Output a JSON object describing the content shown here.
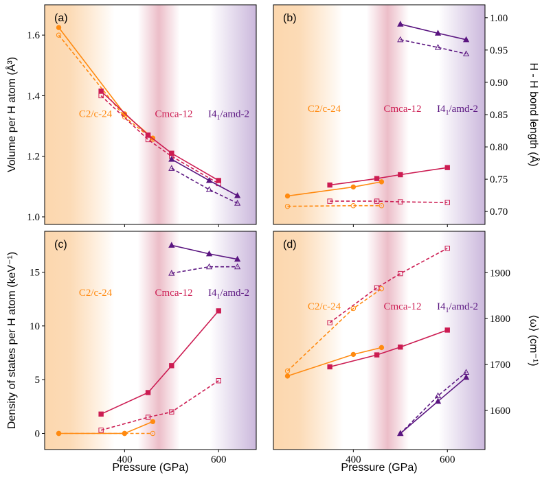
{
  "figure": {
    "x_axis_label": "Pressure (GPa)",
    "phase_labels": [
      {
        "text": "C2/c-24",
        "color": "#ff8a10"
      },
      {
        "text": "Cmca-12",
        "color": "#cc1c52"
      },
      {
        "text": "I4₁/amd-2",
        "color": "#5a1580"
      }
    ],
    "colors": {
      "C2c24": "#ff8a10",
      "Cmca12": "#cc1c52",
      "I41amd2": "#5a1580",
      "bg_orange": "#fcd7ae",
      "bg_pink": "#ecbdc8",
      "bg_purple": "#cbb8dc"
    }
  },
  "chart_data": [
    {
      "panel": "(a)",
      "type": "line",
      "ylabel": "Volume per H atom (Å³)",
      "axis_side": "left",
      "xlim": [
        230,
        680
      ],
      "ylim": [
        0.975,
        1.7
      ],
      "xticks": [
        400,
        600
      ],
      "yticks": [
        1.0,
        1.2,
        1.4,
        1.6
      ],
      "tick_decimals": 1,
      "phase_label_y": 1.33,
      "series": [
        {
          "name": "C2/c-24 solid",
          "phase": "C2c24",
          "style": "solid",
          "marker": "circle",
          "x": [
            260,
            400,
            460
          ],
          "y": [
            1.625,
            1.34,
            1.26
          ]
        },
        {
          "name": "C2/c-24 dashed",
          "phase": "C2c24",
          "style": "dashed",
          "marker": "circle",
          "x": [
            260,
            400,
            460
          ],
          "y": [
            1.6,
            1.33,
            1.255
          ]
        },
        {
          "name": "Cmca-12 solid",
          "phase": "Cmca12",
          "style": "solid",
          "marker": "square",
          "x": [
            350,
            450,
            500,
            600
          ],
          "y": [
            1.415,
            1.27,
            1.21,
            1.12
          ]
        },
        {
          "name": "Cmca-12 dashed",
          "phase": "Cmca12",
          "style": "dashed",
          "marker": "square",
          "x": [
            350,
            450,
            500,
            600
          ],
          "y": [
            1.4,
            1.255,
            1.2,
            1.11
          ]
        },
        {
          "name": "I41/amd-2 solid",
          "phase": "I41amd2",
          "style": "solid",
          "marker": "triangle",
          "x": [
            500,
            580,
            640
          ],
          "y": [
            1.19,
            1.12,
            1.07
          ]
        },
        {
          "name": "I41/amd-2 dashed",
          "phase": "I41amd2",
          "style": "dashed",
          "marker": "triangle",
          "x": [
            500,
            580,
            640
          ],
          "y": [
            1.16,
            1.09,
            1.045
          ]
        }
      ]
    },
    {
      "panel": "(b)",
      "type": "line",
      "ylabel": "H - H bond length (Å)",
      "axis_side": "right",
      "xlim": [
        230,
        680
      ],
      "ylim": [
        0.68,
        1.02
      ],
      "xticks": [
        400,
        600
      ],
      "yticks": [
        0.7,
        0.75,
        0.8,
        0.85,
        0.9,
        0.95,
        1.0
      ],
      "tick_decimals": 2,
      "phase_label_y": 0.854,
      "series": [
        {
          "name": "C2/c-24 solid",
          "phase": "C2c24",
          "style": "solid",
          "marker": "circle",
          "x": [
            260,
            400,
            460
          ],
          "y": [
            0.724,
            0.738,
            0.746
          ]
        },
        {
          "name": "C2/c-24 dashed",
          "phase": "C2c24",
          "style": "dashed",
          "marker": "circle",
          "x": [
            260,
            400,
            460
          ],
          "y": [
            0.708,
            0.709,
            0.709
          ]
        },
        {
          "name": "Cmca-12 solid",
          "phase": "Cmca12",
          "style": "solid",
          "marker": "square",
          "x": [
            350,
            450,
            500,
            600
          ],
          "y": [
            0.741,
            0.751,
            0.757,
            0.768
          ]
        },
        {
          "name": "Cmca-12 dashed",
          "phase": "Cmca12",
          "style": "dashed",
          "marker": "square",
          "x": [
            350,
            450,
            500,
            600
          ],
          "y": [
            0.716,
            0.716,
            0.715,
            0.714
          ]
        },
        {
          "name": "I41/amd-2 solid",
          "phase": "I41amd2",
          "style": "solid",
          "marker": "triangle",
          "x": [
            500,
            580,
            640
          ],
          "y": [
            0.99,
            0.976,
            0.966
          ]
        },
        {
          "name": "I41/amd-2 dashed",
          "phase": "I41amd2",
          "style": "dashed",
          "marker": "triangle",
          "x": [
            500,
            580,
            640
          ],
          "y": [
            0.966,
            0.954,
            0.944
          ]
        }
      ]
    },
    {
      "panel": "(c)",
      "type": "line",
      "ylabel": "Density of states per H atom (keV⁻¹)",
      "axis_side": "left",
      "xlim": [
        230,
        680
      ],
      "ylim": [
        -1.5,
        18.8
      ],
      "xticks": [
        400,
        600
      ],
      "yticks": [
        0,
        5,
        10,
        15
      ],
      "tick_decimals": 0,
      "phase_label_y": 12.8,
      "series": [
        {
          "name": "C2/c-24 solid",
          "phase": "C2c24",
          "style": "solid",
          "marker": "circle",
          "x": [
            260,
            400,
            460
          ],
          "y": [
            0.0,
            0.0,
            1.1
          ]
        },
        {
          "name": "C2/c-24 dashed",
          "phase": "C2c24",
          "style": "dashed",
          "marker": "circle",
          "x": [
            260,
            400,
            460
          ],
          "y": [
            0.0,
            0.0,
            0.0
          ]
        },
        {
          "name": "Cmca-12 solid",
          "phase": "Cmca12",
          "style": "solid",
          "marker": "square",
          "x": [
            350,
            450,
            500,
            600
          ],
          "y": [
            1.8,
            3.8,
            6.3,
            11.4
          ]
        },
        {
          "name": "Cmca-12 dashed",
          "phase": "Cmca12",
          "style": "dashed",
          "marker": "square",
          "x": [
            350,
            450,
            500,
            600
          ],
          "y": [
            0.3,
            1.5,
            2.0,
            4.9
          ]
        },
        {
          "name": "I41/amd-2 solid",
          "phase": "I41amd2",
          "style": "solid",
          "marker": "triangle",
          "x": [
            500,
            580,
            640
          ],
          "y": [
            17.5,
            16.7,
            16.2
          ]
        },
        {
          "name": "I41/amd-2 dashed",
          "phase": "I41amd2",
          "style": "dashed",
          "marker": "triangle",
          "x": [
            500,
            580,
            640
          ],
          "y": [
            14.9,
            15.5,
            15.5
          ]
        }
      ]
    },
    {
      "panel": "(d)",
      "type": "line",
      "ylabel": "⟨ω⟩ (cm⁻¹)",
      "axis_side": "right",
      "xlim": [
        230,
        680
      ],
      "ylim": [
        1515,
        1990
      ],
      "xticks": [
        400,
        600
      ],
      "yticks": [
        1600,
        1700,
        1800,
        1900
      ],
      "tick_decimals": 0,
      "phase_label_y": 1820,
      "series": [
        {
          "name": "C2/c-24 solid",
          "phase": "C2c24",
          "style": "solid",
          "marker": "circle",
          "x": [
            260,
            400,
            460
          ],
          "y": [
            1675,
            1722,
            1737
          ]
        },
        {
          "name": "C2/c-24 dashed",
          "phase": "C2c24",
          "style": "dashed",
          "marker": "circle",
          "x": [
            260,
            400,
            460
          ],
          "y": [
            1686,
            1822,
            1865
          ]
        },
        {
          "name": "Cmca-12 solid",
          "phase": "Cmca12",
          "style": "solid",
          "marker": "square",
          "x": [
            350,
            450,
            500,
            600
          ],
          "y": [
            1695,
            1721,
            1738,
            1775
          ]
        },
        {
          "name": "Cmca-12 dashed",
          "phase": "Cmca12",
          "style": "dashed",
          "marker": "square",
          "x": [
            350,
            450,
            500,
            600
          ],
          "y": [
            1791,
            1867,
            1898,
            1953
          ]
        },
        {
          "name": "I41/amd-2 solid",
          "phase": "I41amd2",
          "style": "solid",
          "marker": "triangle",
          "x": [
            500,
            580,
            640
          ],
          "y": [
            1550,
            1620,
            1672
          ]
        },
        {
          "name": "I41/amd-2 dashed",
          "phase": "I41amd2",
          "style": "dashed",
          "marker": "triangle",
          "x": [
            500,
            580,
            640
          ],
          "y": [
            1550,
            1632,
            1683
          ]
        }
      ]
    }
  ]
}
